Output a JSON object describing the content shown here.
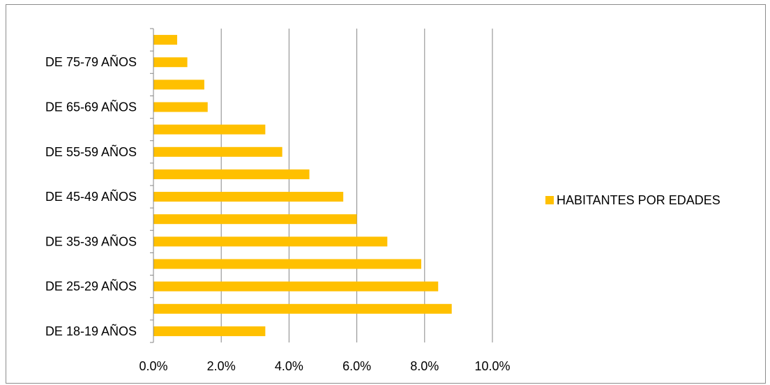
{
  "chart_data": {
    "type": "bar",
    "orientation": "horizontal",
    "categories": [
      "DE 18-19 AÑOS",
      "",
      "DE 25-29 AÑOS",
      "",
      "DE 35-39 AÑOS",
      "",
      "DE 45-49 AÑOS",
      "",
      "DE 55-59 AÑOS",
      "",
      "DE 65-69 AÑOS",
      "",
      "DE 75-79 AÑOS",
      ""
    ],
    "series": [
      {
        "name": "HABITANTES POR EDADES",
        "color": "#FFC000",
        "values": [
          3.3,
          8.8,
          8.4,
          7.9,
          6.9,
          6.0,
          5.6,
          4.6,
          3.8,
          3.3,
          1.6,
          1.5,
          1.0,
          0.7
        ]
      }
    ],
    "xlim": [
      0,
      10
    ],
    "xticks": [
      "0.0%",
      "2.0%",
      "4.0%",
      "6.0%",
      "8.0%",
      "10.0%"
    ],
    "grid": "vertical",
    "legend_position": "right",
    "title": "",
    "xlabel": "",
    "ylabel": ""
  }
}
